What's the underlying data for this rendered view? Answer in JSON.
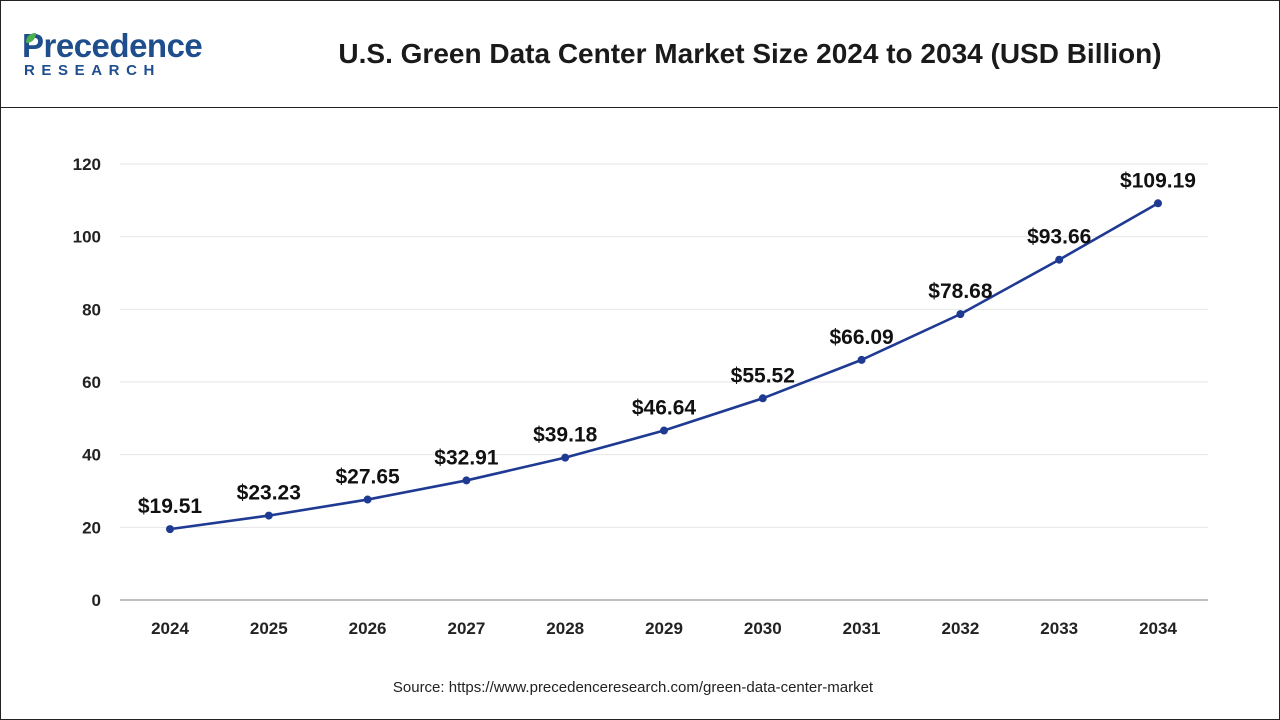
{
  "header": {
    "logo_main": "Precedence",
    "logo_sub": "RESEARCH",
    "title": "U.S. Green Data Center Market Size 2024 to 2034 (USD Billion)"
  },
  "colors": {
    "brand": "#1f4e8c",
    "line": "#1f3a93",
    "grid": "#e6e6e6"
  },
  "chart_data": {
    "type": "line",
    "title": "U.S. Green Data Center Market Size 2024 to 2034 (USD Billion)",
    "categories": [
      "2024",
      "2025",
      "2026",
      "2027",
      "2028",
      "2029",
      "2030",
      "2031",
      "2032",
      "2033",
      "2034"
    ],
    "series": [
      {
        "values": [
          19.51,
          23.23,
          27.65,
          32.91,
          39.18,
          46.64,
          55.52,
          66.09,
          78.68,
          93.66,
          109.19
        ],
        "labels": [
          "$19.51",
          "$23.23",
          "$27.65",
          "$32.91",
          "$39.18",
          "$46.64",
          "$55.52",
          "$66.09",
          "$78.68",
          "$93.66",
          "$109.19"
        ]
      }
    ],
    "yticks": [
      "0",
      "20",
      "40",
      "60",
      "80",
      "100",
      "120"
    ],
    "ylim": [
      0,
      120
    ],
    "xlabel": "",
    "ylabel": "",
    "grid": true,
    "legend": "none"
  },
  "footer": {
    "source": "Source: https://www.precedenceresearch.com/green-data-center-market"
  }
}
